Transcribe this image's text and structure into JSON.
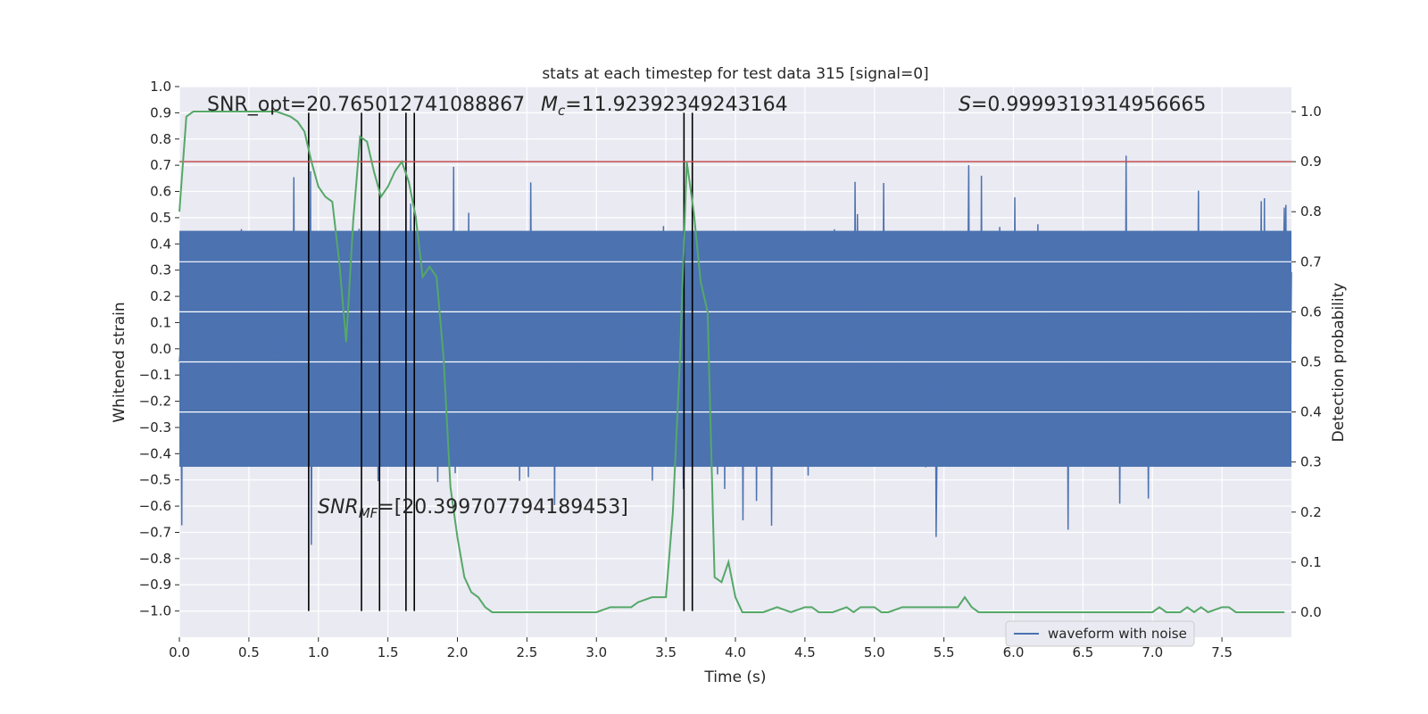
{
  "chart_data": {
    "type": "line",
    "title": "stats at each timestep for test data 315 [signal=0]",
    "xlabel": "Time (s)",
    "ylabel": "Whitened strain",
    "ylabel_right": "Detection probability",
    "xlim": [
      0,
      8
    ],
    "ylim": [
      -1.1,
      1.0
    ],
    "ylim_right": [
      -0.05,
      1.05
    ],
    "x_ticks": [
      0.0,
      0.5,
      1.0,
      1.5,
      2.0,
      2.5,
      3.0,
      3.5,
      4.0,
      4.5,
      5.0,
      5.5,
      6.0,
      6.5,
      7.0,
      7.5
    ],
    "x_tick_labels": [
      "0.0",
      "0.5",
      "1.0",
      "1.5",
      "2.0",
      "2.5",
      "3.0",
      "3.5",
      "4.0",
      "4.5",
      "5.0",
      "5.5",
      "6.0",
      "6.5",
      "7.0",
      "7.5"
    ],
    "y_ticks": [
      1.0,
      0.9,
      0.8,
      0.7,
      0.6,
      0.5,
      0.4,
      0.3,
      0.2,
      0.1,
      0.0,
      -0.1,
      -0.2,
      -0.3,
      -0.4,
      -0.5,
      -0.6,
      -0.7,
      -0.8,
      -0.9,
      -1.0
    ],
    "y_tick_labels": [
      "1.0",
      "0.9",
      "0.8",
      "0.7",
      "0.6",
      "0.5",
      "0.4",
      "0.3",
      "0.2",
      "0.1",
      "0.0",
      "−0.1",
      "−0.2",
      "−0.3",
      "−0.4",
      "−0.5",
      "−0.6",
      "−0.7",
      "−0.8",
      "−0.9",
      "−1.0"
    ],
    "y_ticks_right": [
      1.0,
      0.9,
      0.8,
      0.7,
      0.6,
      0.5,
      0.4,
      0.3,
      0.2,
      0.1,
      0.0
    ],
    "y_tick_labels_right": [
      "1.0",
      "0.9",
      "0.8",
      "0.7",
      "0.6",
      "0.5",
      "0.4",
      "0.3",
      "0.2",
      "0.1",
      "0.0"
    ],
    "annotations": {
      "snr_opt": "SNR_opt=20.765012741088867",
      "mc_symbol": "M",
      "mc_sub": "c",
      "mc_value": "=11.92392349243164",
      "s_symbol": "S",
      "s_value": "=0.9999319314956665",
      "snr_mf_symbol": "SNR",
      "snr_mf_sub": "MF",
      "snr_mf_value": "=[20.399707794189453]"
    },
    "legend": {
      "label": "waveform with noise",
      "position": "lower-right"
    },
    "series": [
      {
        "name": "waveform with noise",
        "axis": "left",
        "color": "#4c72b0",
        "kind": "noise-band",
        "typical_range": [
          -0.45,
          0.45
        ],
        "extreme_range": [
          -1.0,
          0.9
        ]
      },
      {
        "name": "detection probability",
        "axis": "right",
        "color": "#55a868",
        "x": [
          0.0,
          0.05,
          0.1,
          0.2,
          0.3,
          0.4,
          0.5,
          0.6,
          0.7,
          0.8,
          0.85,
          0.9,
          0.95,
          1.0,
          1.05,
          1.1,
          1.15,
          1.2,
          1.25,
          1.3,
          1.35,
          1.4,
          1.45,
          1.5,
          1.55,
          1.6,
          1.65,
          1.7,
          1.75,
          1.8,
          1.85,
          1.9,
          1.95,
          2.0,
          2.05,
          2.1,
          2.15,
          2.2,
          2.25,
          2.3,
          2.4,
          2.6,
          2.8,
          3.0,
          3.1,
          3.15,
          3.2,
          3.25,
          3.3,
          3.4,
          3.5,
          3.55,
          3.6,
          3.65,
          3.7,
          3.75,
          3.8,
          3.85,
          3.9,
          3.95,
          4.0,
          4.05,
          4.1,
          4.2,
          4.3,
          4.4,
          4.5,
          4.55,
          4.6,
          4.65,
          4.7,
          4.8,
          4.85,
          4.9,
          5.0,
          5.05,
          5.1,
          5.2,
          5.3,
          5.4,
          5.5,
          5.6,
          5.65,
          5.7,
          5.75,
          5.8,
          5.85,
          5.9,
          6.0,
          6.5,
          7.0,
          7.05,
          7.1,
          7.2,
          7.25,
          7.3,
          7.35,
          7.4,
          7.5,
          7.55,
          7.6,
          7.65,
          7.7,
          7.8,
          7.95
        ],
        "y": [
          0.8,
          0.99,
          1.0,
          1.0,
          1.0,
          1.0,
          1.0,
          1.0,
          1.0,
          0.99,
          0.98,
          0.96,
          0.9,
          0.85,
          0.83,
          0.82,
          0.7,
          0.54,
          0.78,
          0.95,
          0.94,
          0.88,
          0.83,
          0.85,
          0.88,
          0.9,
          0.86,
          0.79,
          0.67,
          0.69,
          0.67,
          0.51,
          0.25,
          0.15,
          0.07,
          0.04,
          0.03,
          0.01,
          0.0,
          0.0,
          0.0,
          0.0,
          0.0,
          0.0,
          0.01,
          0.01,
          0.01,
          0.01,
          0.02,
          0.03,
          0.03,
          0.2,
          0.5,
          0.9,
          0.8,
          0.66,
          0.6,
          0.07,
          0.06,
          0.1,
          0.03,
          0.0,
          0.0,
          0.0,
          0.01,
          0.0,
          0.01,
          0.01,
          0.0,
          0.0,
          0.0,
          0.01,
          0.0,
          0.01,
          0.01,
          0.0,
          0.0,
          0.01,
          0.01,
          0.01,
          0.01,
          0.01,
          0.03,
          0.01,
          0.0,
          0.0,
          0.0,
          0.0,
          0.0,
          0.0,
          0.0,
          0.01,
          0.0,
          0.0,
          0.01,
          0.0,
          0.01,
          0.0,
          0.01,
          0.01,
          0.0,
          0.0,
          0.0,
          0.0,
          0.0
        ]
      },
      {
        "name": "threshold",
        "axis": "right",
        "color": "#c44e52",
        "y": 0.9
      }
    ],
    "vertical_lines_x": [
      0.93,
      1.31,
      1.44,
      1.63,
      1.69,
      3.63,
      3.69
    ],
    "vertical_lines_range": [
      -1.0,
      0.9
    ]
  }
}
